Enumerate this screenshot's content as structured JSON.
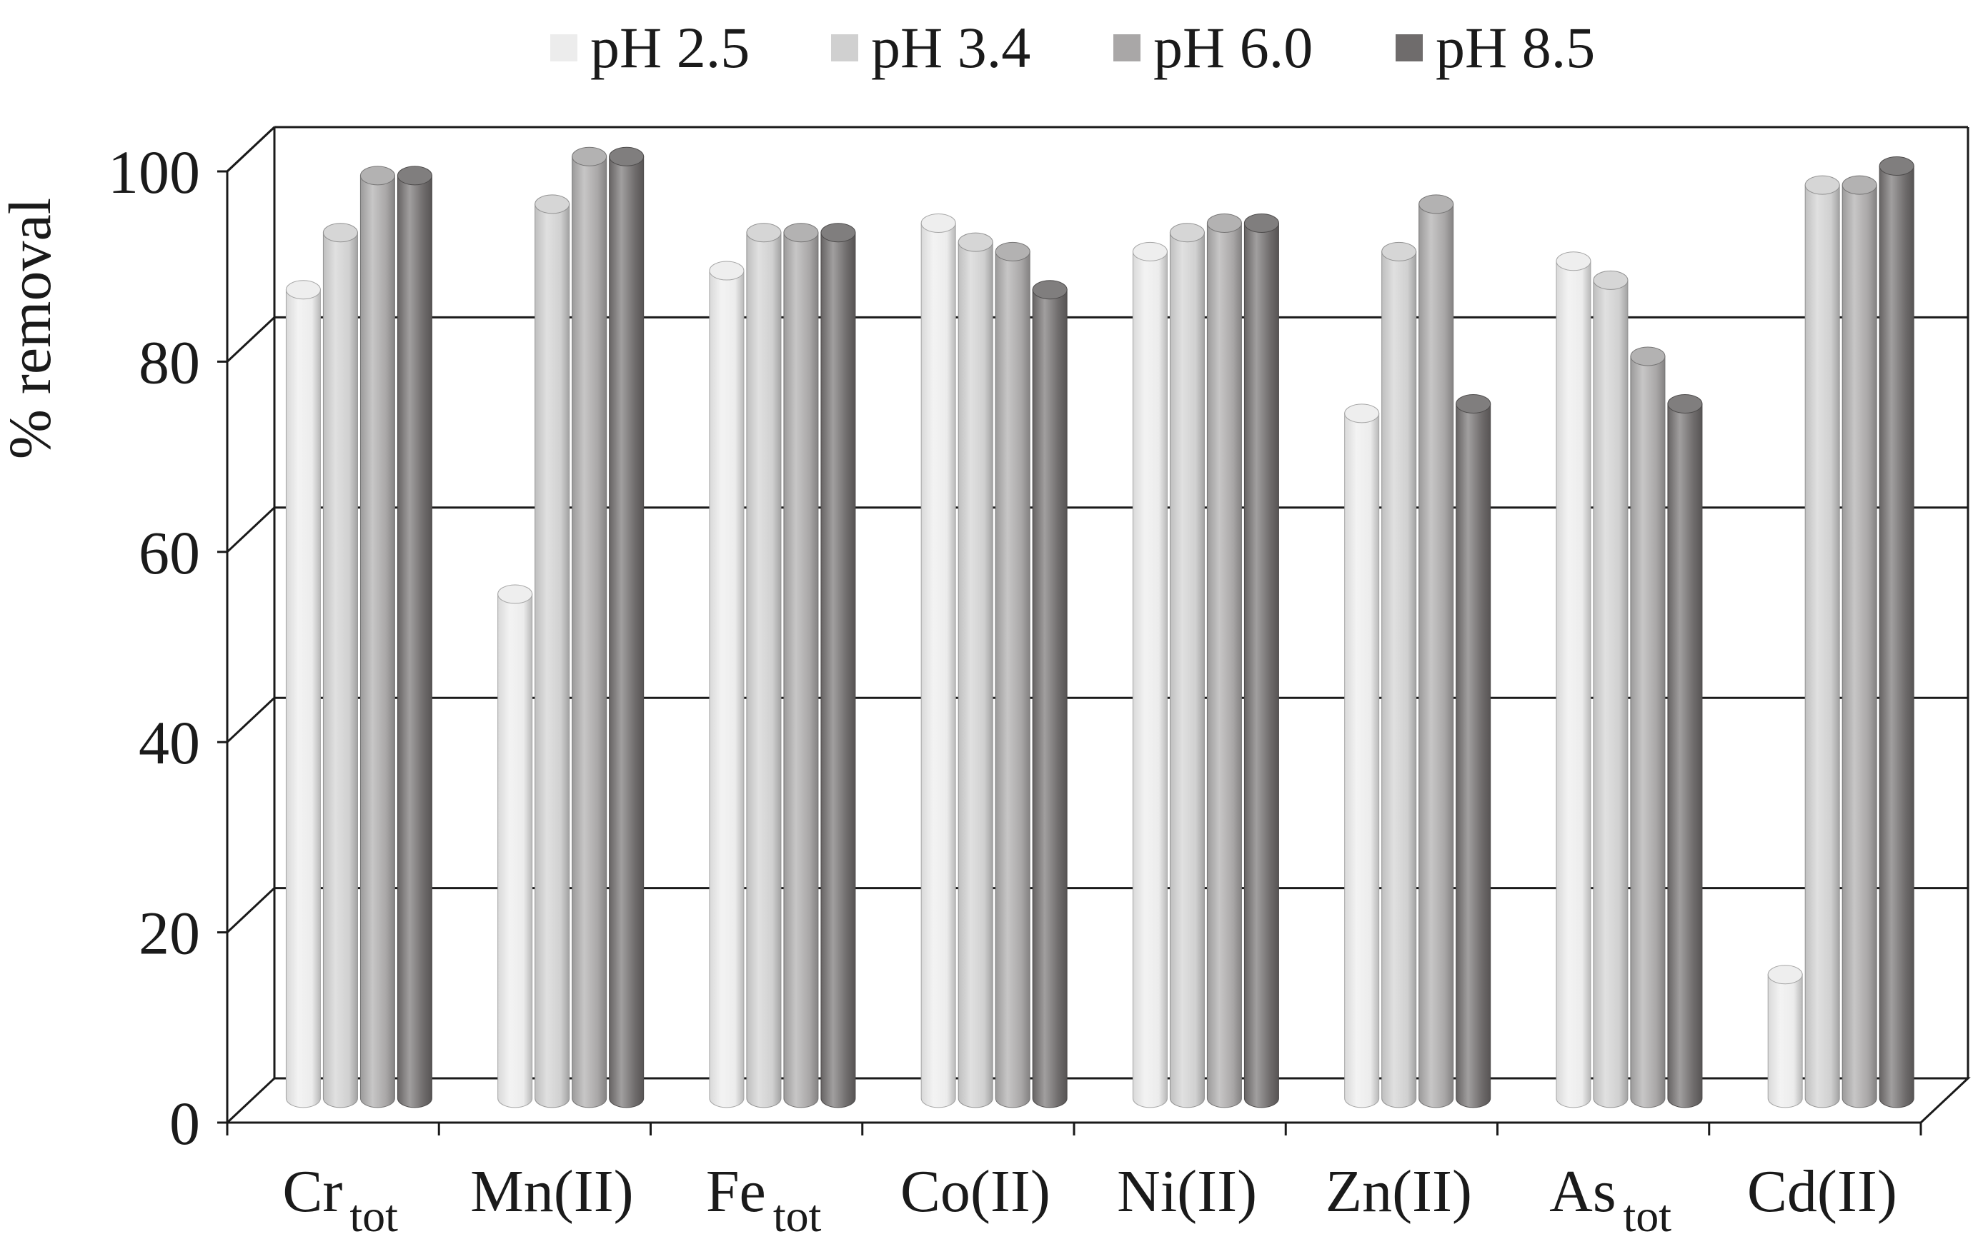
{
  "chart_data": {
    "type": "bar",
    "title": "",
    "xlabel": "",
    "ylabel": "% removal",
    "ylim": [
      0,
      100
    ],
    "yticks": [
      "0",
      "20",
      "40",
      "60",
      "80",
      "100"
    ],
    "grid": true,
    "legend_position": "top",
    "categories": [
      {
        "main": "Cr",
        "sub": "tot"
      },
      {
        "main": "Mn(II)",
        "sub": ""
      },
      {
        "main": "Fe",
        "sub": "tot"
      },
      {
        "main": "Co(II)",
        "sub": ""
      },
      {
        "main": "Ni(II)",
        "sub": ""
      },
      {
        "main": "Zn(II)",
        "sub": ""
      },
      {
        "main": "As",
        "sub": "tot"
      },
      {
        "main": "Cd(II)",
        "sub": ""
      }
    ],
    "series": [
      {
        "name": "pH 2.5",
        "color": "#ececec",
        "values": [
          85,
          53,
          87,
          92,
          89,
          72,
          88,
          13
        ]
      },
      {
        "name": "pH 3.4",
        "color": "#d0d0d0",
        "values": [
          91,
          94,
          91,
          90,
          91,
          89,
          86,
          96
        ]
      },
      {
        "name": "pH 6.0",
        "color": "#a9a7a7",
        "values": [
          97,
          99,
          91,
          89,
          92,
          94,
          78,
          96
        ]
      },
      {
        "name": "pH 8.5",
        "color": "#6f6c6c",
        "values": [
          97,
          99,
          91,
          85,
          92,
          73,
          73,
          98
        ]
      }
    ]
  }
}
